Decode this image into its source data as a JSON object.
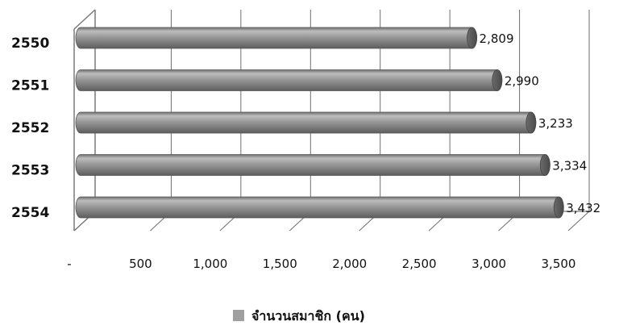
{
  "chart_data": {
    "type": "bar",
    "orientation": "horizontal",
    "categories": [
      "2550",
      "2551",
      "2552",
      "2553",
      "2554"
    ],
    "series": [
      {
        "name": "จำนวนสมาชิก (คน)",
        "values": [
          2809,
          2990,
          3233,
          3334,
          3432
        ],
        "value_labels": [
          "2,809",
          "2,990",
          "3,233",
          "3,334",
          "3,432"
        ],
        "color": "#8f8f8f"
      }
    ],
    "x_ticks": [
      {
        "value": 0,
        "label": "-"
      },
      {
        "value": 500,
        "label": "500"
      },
      {
        "value": 1000,
        "label": "1,000"
      },
      {
        "value": 1500,
        "label": "1,500"
      },
      {
        "value": 2000,
        "label": "2,000"
      },
      {
        "value": 2500,
        "label": "2,500"
      },
      {
        "value": 3000,
        "label": "3,000"
      },
      {
        "value": 3500,
        "label": "3,500"
      }
    ],
    "xlim": [
      0,
      3500
    ],
    "grid": true,
    "legend_position": "bottom",
    "style": "3d"
  }
}
